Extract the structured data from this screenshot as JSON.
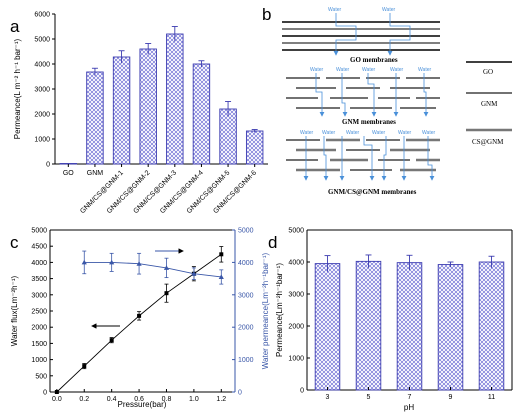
{
  "panel_labels": {
    "a": "a",
    "b": "b",
    "c": "c",
    "d": "d"
  },
  "colors": {
    "bar_edge": "#3b3bb0",
    "hatch": "#5a5ad0",
    "line_blue": "#3a57a8",
    "water": "#4a90d9",
    "black": "#000000"
  },
  "chart_data": [
    {
      "panel": "a",
      "type": "bar",
      "categories": [
        "GO",
        "GNM",
        "GNM/CS@GNM-1",
        "GNM/CS@GNM-2",
        "GNM/CS@GNM-3",
        "GNM/CS@GNM-4",
        "GNM/CS@GNM-5",
        "GNM/CS@GNM-6"
      ],
      "values": [
        20,
        3680,
        4280,
        4600,
        5200,
        4000,
        2200,
        1320
      ],
      "errors": [
        0,
        150,
        250,
        220,
        300,
        130,
        300,
        60
      ],
      "ylabel": "Permeance(L m⁻² h⁻¹ bar⁻¹)",
      "ylim": [
        0,
        6000
      ],
      "yticks": [
        "0",
        "1000",
        "2000",
        "3000",
        "4000",
        "5000",
        "6000"
      ]
    },
    {
      "panel": "c",
      "type": "line",
      "x": [
        0,
        0.2,
        0.4,
        0.6,
        0.8,
        1.0,
        1.2
      ],
      "xticks": [
        "0.0",
        "0.2",
        "0.4",
        "0.6",
        "0.8",
        "1.0",
        "1.2"
      ],
      "xlabel": "Pressure(bar)",
      "xlim": [
        -0.05,
        1.3
      ],
      "series": [
        {
          "axis": "left",
          "values": [
            0,
            800,
            1600,
            2350,
            3050,
            3650,
            4250
          ],
          "errors": [
            0,
            80,
            80,
            130,
            280,
            220,
            240
          ]
        },
        {
          "axis": "right",
          "values": [
            null,
            4000,
            4000,
            3960,
            3830,
            3650,
            3550
          ],
          "errors": [
            null,
            350,
            280,
            320,
            300,
            180,
            220
          ]
        }
      ],
      "ylabel_left": "Water flux(Lm⁻²h⁻¹)",
      "ylim_left": [
        0,
        5000
      ],
      "yticks_left": [
        "0",
        "500",
        "1000",
        "1500",
        "2000",
        "2500",
        "3000",
        "3500",
        "4000",
        "4500",
        "5000"
      ],
      "ylabel_right": "Water permeance(Lm⁻²h⁻¹bar⁻¹)",
      "ylim_right": [
        0,
        5000
      ],
      "yticks_right": [
        "0",
        "1000",
        "2000",
        "3000",
        "4000",
        "5000"
      ]
    },
    {
      "panel": "d",
      "type": "bar",
      "categories": [
        "3",
        "5",
        "7",
        "9",
        "11"
      ],
      "values": [
        3950,
        4020,
        3980,
        3920,
        4000
      ],
      "errors": [
        250,
        200,
        230,
        80,
        180
      ],
      "xlabel": "pH",
      "ylabel": "Permeance(Lm⁻²h⁻¹bar⁻¹)",
      "ylim": [
        0,
        5000
      ],
      "yticks": [
        "0",
        "1000",
        "2000",
        "3000",
        "4000",
        "5000"
      ]
    }
  ],
  "diagram_b": {
    "water_label": "Water",
    "labels": {
      "go": "GO membranes",
      "gnm": "GNM membranes",
      "gnmcs": "GNM/CS@GNM membranes"
    },
    "legend": [
      "GO",
      "GNM",
      "CS@GNM"
    ]
  }
}
